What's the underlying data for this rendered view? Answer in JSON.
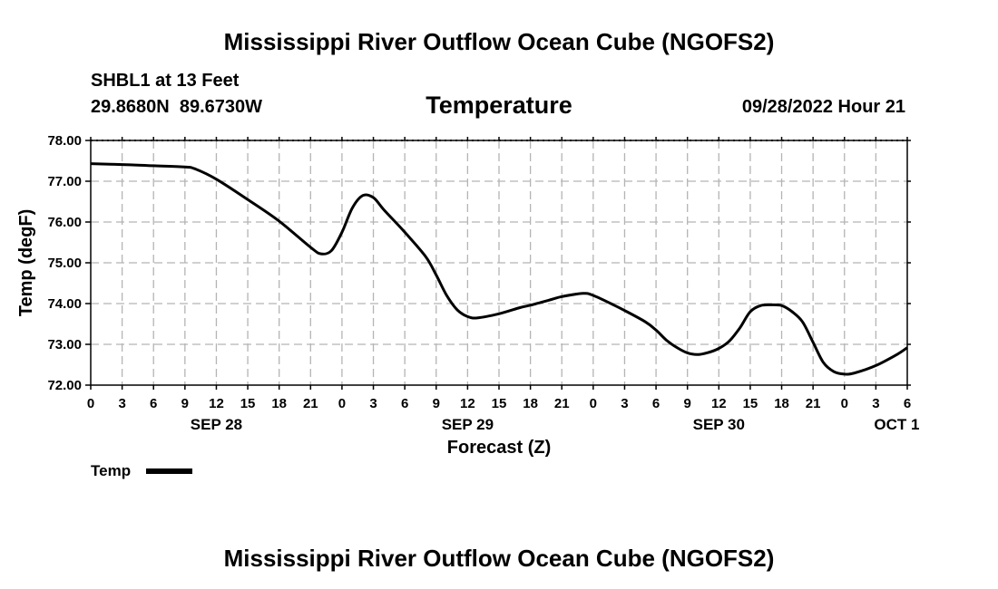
{
  "page": {
    "title": "Mississippi River Outflow Ocean Cube (NGOFS2)",
    "footer_title": "Mississippi River Outflow Ocean Cube (NGOFS2)",
    "station": "SHBL1 at 13 Feet",
    "location": "29.8680N  89.6730W",
    "variable": "Temperature",
    "timestamp": "09/28/2022 Hour 21"
  },
  "chart_data": {
    "type": "line",
    "title": "Temperature",
    "xlabel": "Forecast (Z)",
    "ylabel": "Temp (degF)",
    "xlim": [
      0,
      78
    ],
    "ylim": [
      72.0,
      78.0
    ],
    "grid": true,
    "x_unit": "hours since 09/28/2022 00Z",
    "x_ticks": [
      0,
      3,
      6,
      9,
      12,
      15,
      18,
      21,
      24,
      27,
      30,
      33,
      36,
      39,
      42,
      45,
      48,
      51,
      54,
      57,
      60,
      63,
      66,
      69,
      72,
      75,
      78
    ],
    "x_tick_labels": [
      "0",
      "3",
      "6",
      "9",
      "12",
      "15",
      "18",
      "21",
      "0",
      "3",
      "6",
      "9",
      "12",
      "15",
      "18",
      "21",
      "0",
      "3",
      "6",
      "9",
      "12",
      "15",
      "18",
      "21",
      "0",
      "3",
      "6"
    ],
    "y_ticks": [
      72.0,
      73.0,
      74.0,
      75.0,
      76.0,
      77.0,
      78.0
    ],
    "y_tick_labels": [
      "72.00",
      "73.00",
      "74.00",
      "75.00",
      "76.00",
      "77.00",
      "78.00"
    ],
    "date_labels": [
      {
        "x": 12,
        "label": "SEP 28"
      },
      {
        "x": 36,
        "label": "SEP 29"
      },
      {
        "x": 60,
        "label": "SEP 30"
      },
      {
        "x": 77,
        "label": "OCT 1"
      }
    ],
    "legend": [
      {
        "name": "Temp",
        "color": "#000000"
      }
    ],
    "legend_position": "bottom-left",
    "series": [
      {
        "name": "Temp",
        "color": "#000000",
        "x": [
          0,
          3,
          6,
          9,
          10,
          12,
          15,
          18,
          21,
          22,
          23,
          24,
          25,
          26,
          27,
          28,
          30,
          32,
          33,
          34,
          35,
          36,
          37,
          39,
          41,
          42,
          44,
          45,
          47,
          48,
          50,
          51,
          53,
          54,
          55,
          56,
          57,
          58,
          59,
          60,
          61,
          62,
          63,
          64,
          65,
          66,
          67,
          68,
          69,
          70,
          71,
          72,
          73,
          75,
          77,
          78
        ],
        "y": [
          77.43,
          77.41,
          77.38,
          77.35,
          77.3,
          77.05,
          76.55,
          76.02,
          75.38,
          75.22,
          75.3,
          75.75,
          76.35,
          76.65,
          76.6,
          76.3,
          75.75,
          75.15,
          74.7,
          74.2,
          73.85,
          73.68,
          73.65,
          73.75,
          73.9,
          73.96,
          74.1,
          74.17,
          74.25,
          74.2,
          73.96,
          73.83,
          73.55,
          73.35,
          73.1,
          72.92,
          72.79,
          72.75,
          72.8,
          72.9,
          73.08,
          73.4,
          73.8,
          73.95,
          73.97,
          73.95,
          73.8,
          73.55,
          73.05,
          72.55,
          72.33,
          72.27,
          72.3,
          72.48,
          72.75,
          72.92
        ]
      }
    ]
  }
}
